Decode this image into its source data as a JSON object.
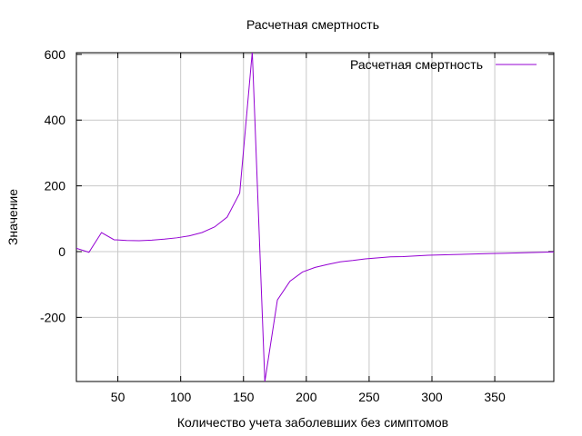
{
  "chart_data": {
    "type": "line",
    "title": "Расчетная смертность",
    "xlabel": "Количество учета заболевших без симптомов",
    "ylabel": "Значение",
    "xlim": [
      17,
      397
    ],
    "ylim": [
      -395,
      605
    ],
    "xticks": [
      50,
      100,
      150,
      200,
      250,
      300,
      350
    ],
    "yticks": [
      -200,
      0,
      200,
      400,
      600
    ],
    "xtick_labels": [
      "50",
      "100",
      "150",
      "200",
      "250",
      "300",
      "350"
    ],
    "ytick_labels": [
      "-200",
      "0",
      "200",
      "400",
      "600"
    ],
    "grid": true,
    "legend_position": "top-right",
    "series": [
      {
        "name": "Расчетная смертность",
        "color": "#9400d3",
        "x": [
          17,
          27,
          37,
          47,
          57,
          67,
          77,
          87,
          97,
          107,
          117,
          127,
          137,
          147,
          157,
          167,
          177,
          187,
          197,
          207,
          217,
          227,
          237,
          247,
          257,
          267,
          277,
          287,
          297,
          307,
          317,
          327,
          337,
          347,
          357,
          367,
          377,
          387,
          397
        ],
        "y": [
          10,
          -2,
          58,
          36,
          34,
          33,
          35,
          38,
          42,
          48,
          58,
          75,
          105,
          178,
          608,
          -395,
          -147,
          -90,
          -62,
          -48,
          -39,
          -31,
          -27,
          -22,
          -19,
          -16,
          -15,
          -13,
          -11,
          -10,
          -9,
          -8,
          -7,
          -6,
          -5,
          -4,
          -3,
          -2,
          -1
        ]
      }
    ]
  }
}
